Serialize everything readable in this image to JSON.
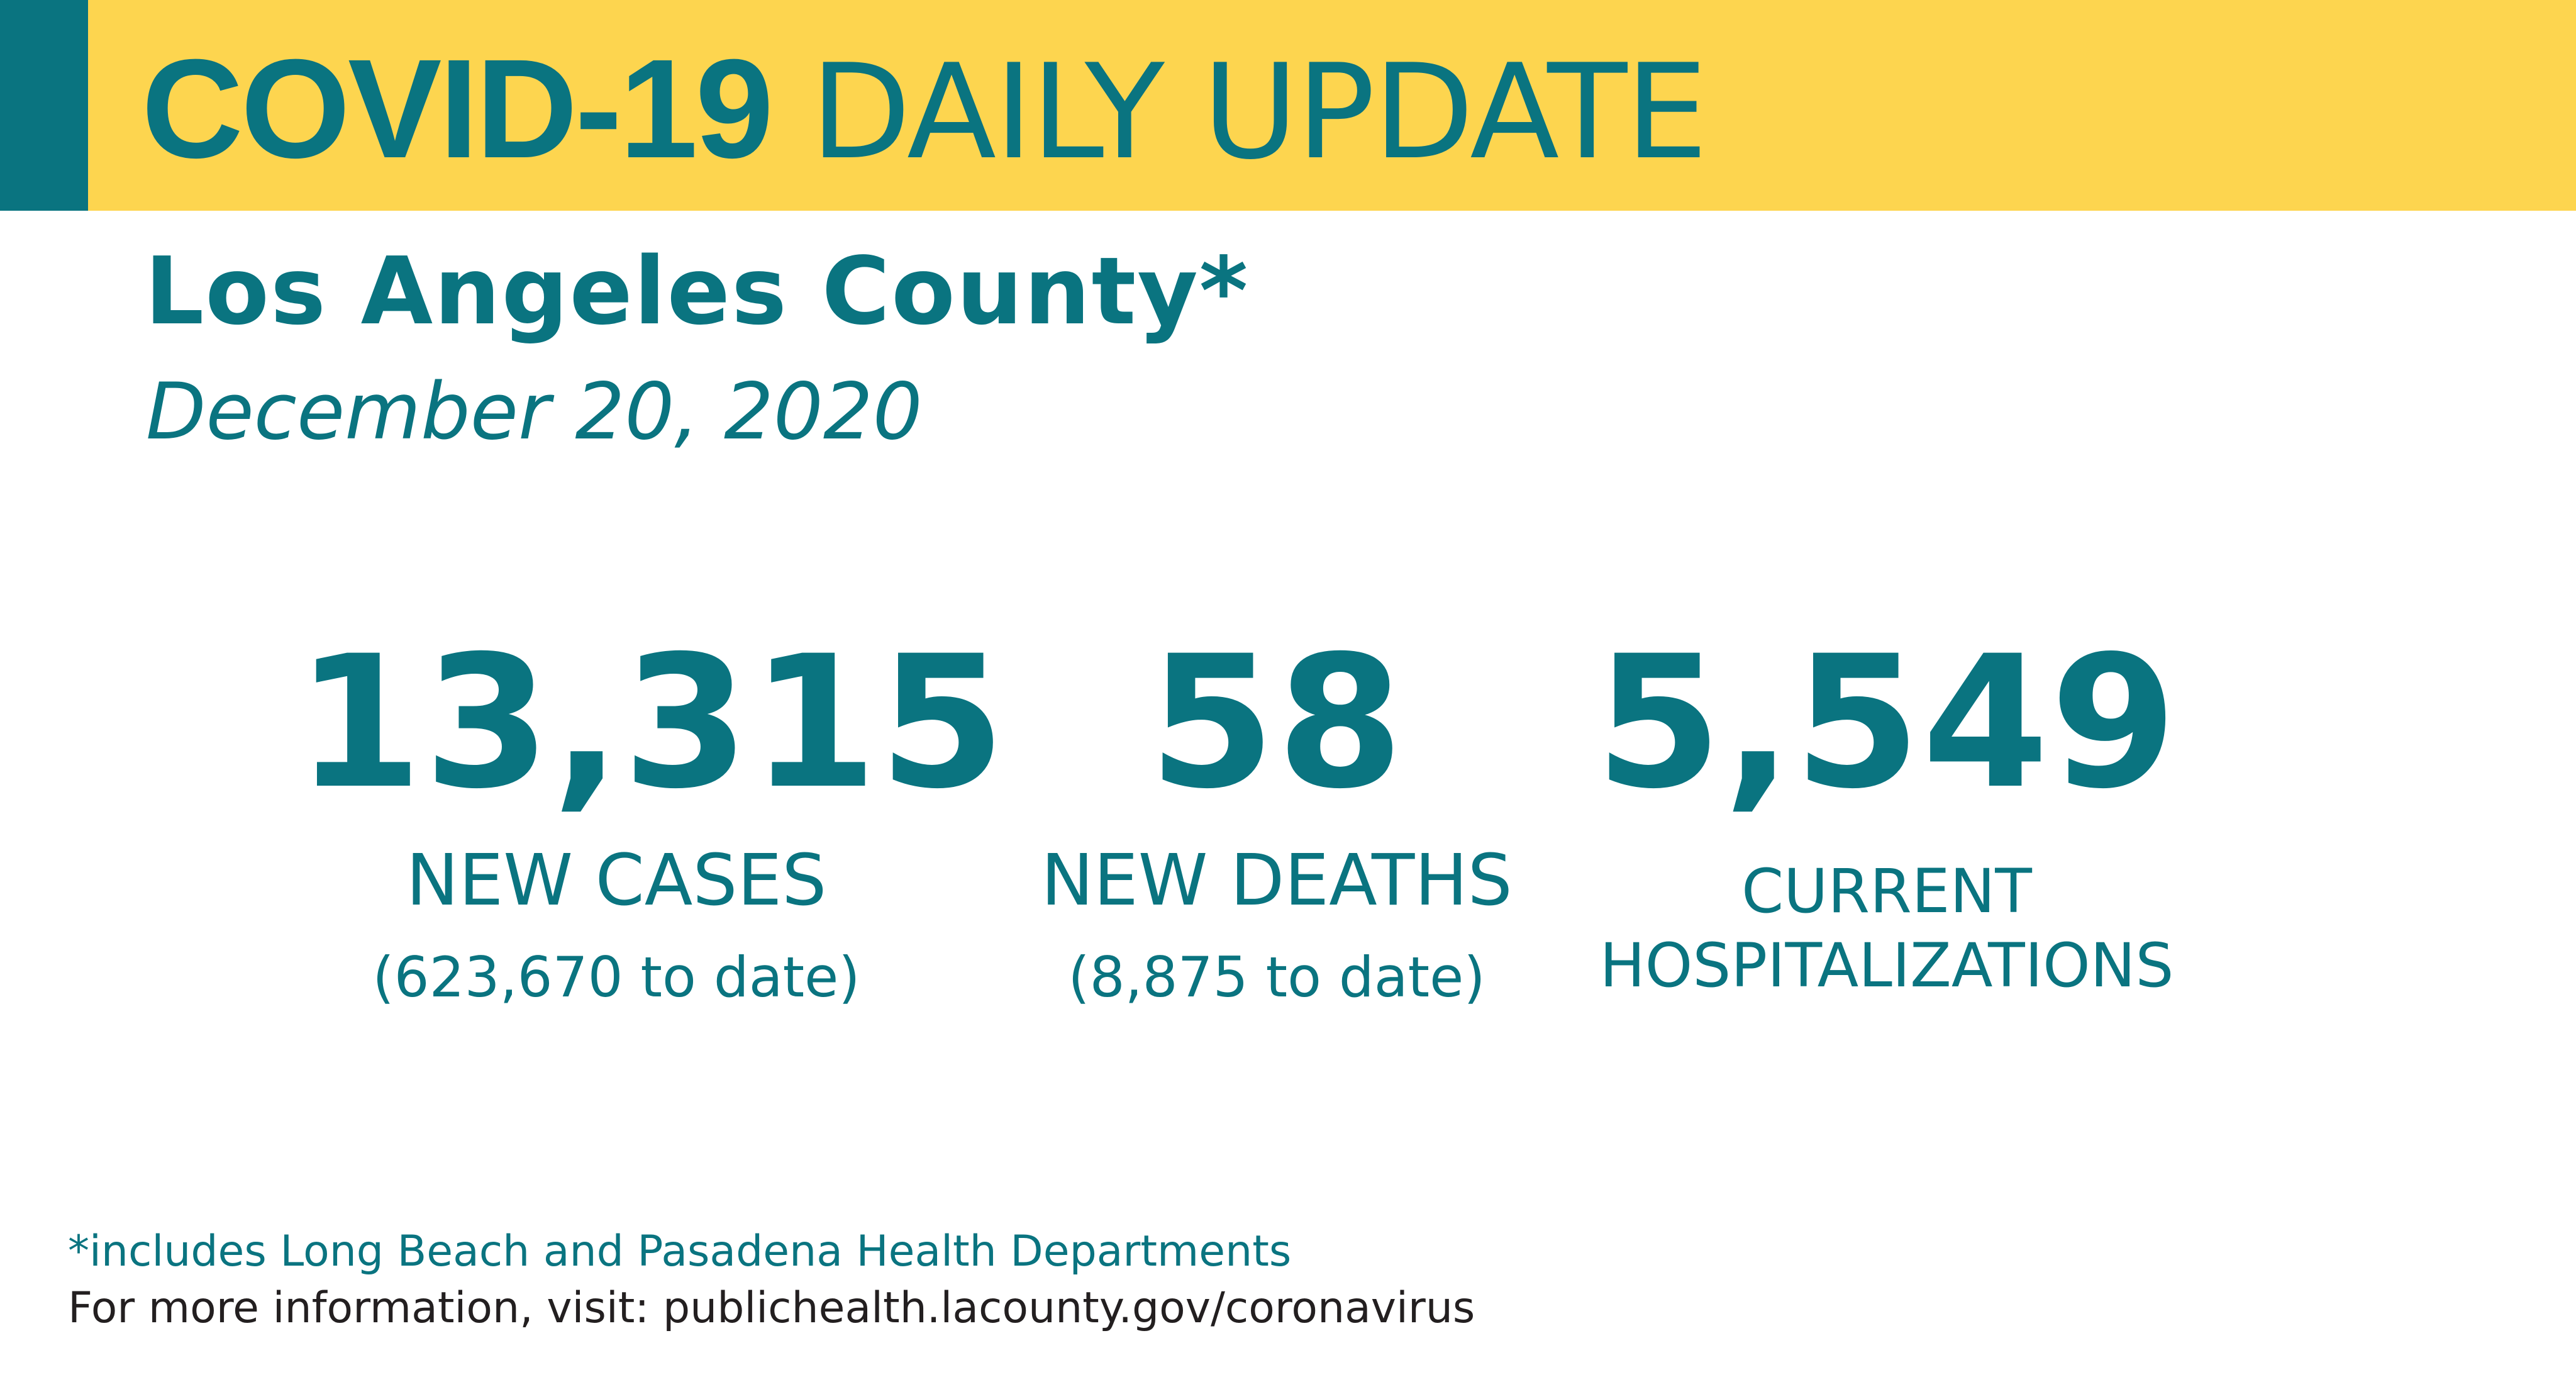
{
  "banner": {
    "title_bold": "COVID-19",
    "title_regular": "DAILY UPDATE",
    "background_color": "#fdd54f",
    "accent_color": "#0a7480"
  },
  "header": {
    "location": "Los Angeles County*",
    "date": "December 20, 2020"
  },
  "stats": [
    {
      "number": "13,315",
      "label": "NEW CASES",
      "sub": "(623,670 to date)"
    },
    {
      "number": "58",
      "label": "NEW DEATHS",
      "sub": "(8,875 to date)"
    },
    {
      "number": "5,549",
      "label_line1": "CURRENT",
      "label_line2": "HOSPITALIZATIONS"
    }
  ],
  "footer": {
    "footnote": "*includes Long Beach and Pasadena Health Departments",
    "more_info": "For more information, visit: publichealth.lacounty.gov/coronavirus"
  },
  "colors": {
    "primary_text": "#0a7480",
    "footer_text": "#231f20",
    "background": "#ffffff"
  }
}
